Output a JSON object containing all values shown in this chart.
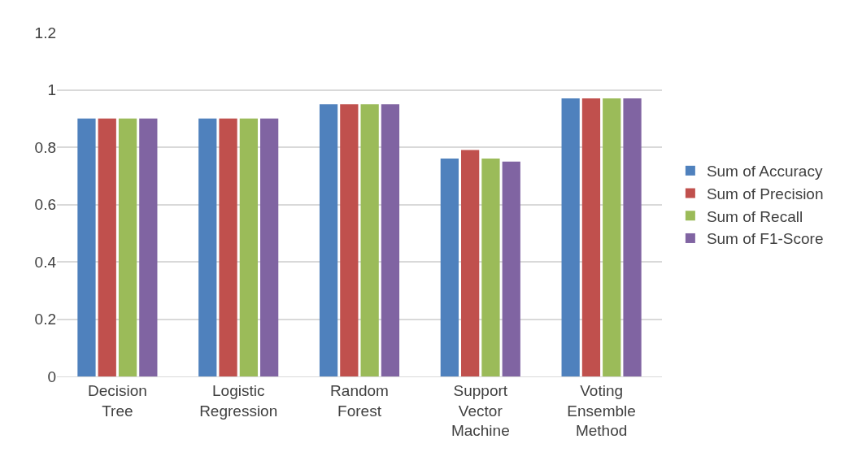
{
  "chart_data": {
    "type": "bar",
    "categories": [
      "Decision Tree",
      "Logistic Regression",
      "Random Forest",
      "Support Vector Machine",
      "Voting Ensemble Method"
    ],
    "series": [
      {
        "name": "Sum of Accuracy",
        "color": "#4f81bd",
        "values": [
          0.9,
          0.9,
          0.95,
          0.76,
          0.97
        ]
      },
      {
        "name": "Sum of Precision",
        "color": "#c0504d",
        "values": [
          0.9,
          0.9,
          0.95,
          0.79,
          0.97
        ]
      },
      {
        "name": "Sum of Recall",
        "color": "#9bbb59",
        "values": [
          0.9,
          0.9,
          0.95,
          0.76,
          0.97
        ]
      },
      {
        "name": "Sum of F1-Score",
        "color": "#8064a2",
        "values": [
          0.9,
          0.9,
          0.95,
          0.75,
          0.97
        ]
      }
    ],
    "ylim": [
      0,
      1.2
    ],
    "yticks": [
      0,
      0.2,
      0.4,
      0.6,
      0.8,
      1,
      1.2
    ],
    "grid": "y",
    "legend": "right"
  }
}
